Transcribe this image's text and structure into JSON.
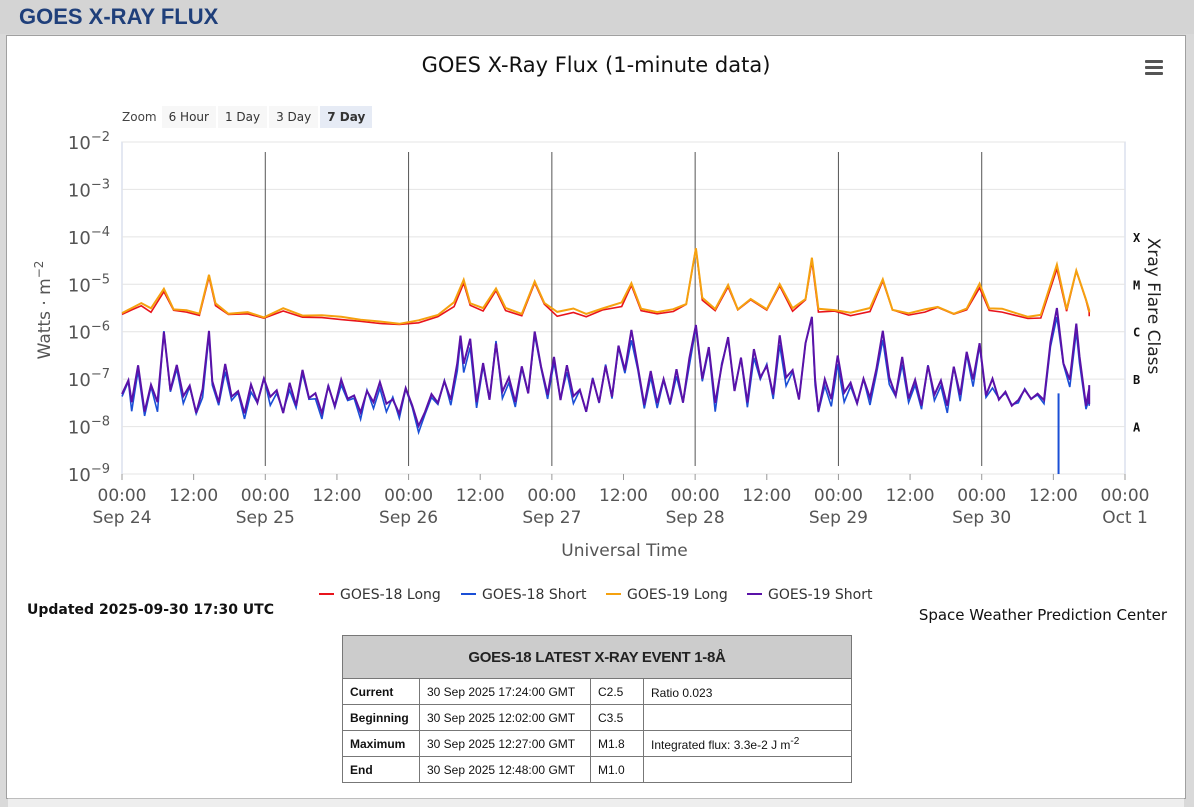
{
  "header": {
    "title": "GOES X-RAY FLUX"
  },
  "chart": {
    "menu_icon": "hamburger-menu-icon",
    "zoom": {
      "label": "Zoom",
      "options": [
        "6 Hour",
        "1 Day",
        "3 Day",
        "7 Day"
      ],
      "active": "7 Day"
    }
  },
  "chart_data": {
    "type": "line",
    "title": "GOES X-Ray Flux (1-minute data)",
    "xlabel": "Universal Time",
    "ylabel": "Watts · m",
    "ylabel_exponent": "−2",
    "right_axis_title": "Xray Flare Class",
    "yscale": "log",
    "ylim": [
      1e-09,
      0.01
    ],
    "xlim": [
      "2025-09-24 00:00",
      "2025-10-01 00:00"
    ],
    "y_ticks": [
      {
        "base": "10",
        "exp": "−2"
      },
      {
        "base": "10",
        "exp": "−3"
      },
      {
        "base": "10",
        "exp": "−4"
      },
      {
        "base": "10",
        "exp": "−5"
      },
      {
        "base": "10",
        "exp": "−6"
      },
      {
        "base": "10",
        "exp": "−7"
      },
      {
        "base": "10",
        "exp": "−8"
      },
      {
        "base": "10",
        "exp": "−9"
      }
    ],
    "x_ticks": [
      {
        "time": "00:00",
        "date": "Sep 24"
      },
      {
        "time": "12:00",
        "date": ""
      },
      {
        "time": "00:00",
        "date": "Sep 25"
      },
      {
        "time": "12:00",
        "date": ""
      },
      {
        "time": "00:00",
        "date": "Sep 26"
      },
      {
        "time": "12:00",
        "date": ""
      },
      {
        "time": "00:00",
        "date": "Sep 27"
      },
      {
        "time": "12:00",
        "date": ""
      },
      {
        "time": "00:00",
        "date": "Sep 28"
      },
      {
        "time": "12:00",
        "date": ""
      },
      {
        "time": "00:00",
        "date": "Sep 29"
      },
      {
        "time": "12:00",
        "date": ""
      },
      {
        "time": "00:00",
        "date": "Sep 30"
      },
      {
        "time": "12:00",
        "date": ""
      },
      {
        "time": "00:00",
        "date": "Oct 1"
      }
    ],
    "flare_classes": [
      {
        "label": "X",
        "value": 0.0001
      },
      {
        "label": "M",
        "value": 1e-05
      },
      {
        "label": "C",
        "value": 1e-06
      },
      {
        "label": "B",
        "value": 1e-07
      },
      {
        "label": "A",
        "value": 1e-08
      }
    ],
    "legend_position": "bottom-center",
    "series": [
      {
        "name": "GOES-18 Long",
        "color": "#e8141c"
      },
      {
        "name": "GOES-18 Short",
        "color": "#1a4fd6"
      },
      {
        "name": "GOES-19 Long",
        "color": "#f5a10f"
      },
      {
        "name": "GOES-19 Short",
        "color": "#5a12a8"
      }
    ],
    "long_points": [
      [
        0,
        2.5e-06
      ],
      [
        3,
        3e-06
      ],
      [
        6,
        4e-06
      ],
      [
        9,
        3e-06
      ],
      [
        13,
        8e-06
      ],
      [
        16,
        3e-06
      ],
      [
        20,
        3e-06
      ],
      [
        24,
        2.5e-06
      ],
      [
        27,
        1.5e-05
      ],
      [
        29,
        4e-06
      ],
      [
        33,
        2.5e-06
      ],
      [
        39,
        2.5e-06
      ],
      [
        44,
        2e-06
      ],
      [
        50,
        3e-06
      ],
      [
        56,
        2.3e-06
      ],
      [
        62,
        2.2e-06
      ],
      [
        68,
        2e-06
      ],
      [
        74,
        1.8e-06
      ],
      [
        80,
        1.7e-06
      ],
      [
        86,
        1.5e-06
      ],
      [
        92,
        1.8e-06
      ],
      [
        98,
        2.2e-06
      ],
      [
        103,
        4e-06
      ],
      [
        106,
        1.2e-05
      ],
      [
        108,
        4e-06
      ],
      [
        112,
        3e-06
      ],
      [
        116,
        8e-06
      ],
      [
        119,
        3e-06
      ],
      [
        124,
        2.3e-06
      ],
      [
        128,
        1.2e-05
      ],
      [
        131,
        4e-06
      ],
      [
        135,
        2.5e-06
      ],
      [
        140,
        3e-06
      ],
      [
        144,
        2.3e-06
      ],
      [
        149,
        3e-06
      ],
      [
        155,
        4e-06
      ],
      [
        158,
        1e-05
      ],
      [
        161,
        3e-06
      ],
      [
        166,
        2.5e-06
      ],
      [
        171,
        3e-06
      ],
      [
        175,
        4e-06
      ],
      [
        178,
        6e-05
      ],
      [
        180,
        5e-06
      ],
      [
        184,
        3e-06
      ],
      [
        188,
        1e-05
      ],
      [
        191,
        3e-06
      ],
      [
        195,
        5e-06
      ],
      [
        200,
        3e-06
      ],
      [
        204,
        1e-05
      ],
      [
        208,
        3e-06
      ],
      [
        212,
        5e-06
      ],
      [
        214,
        3.5e-05
      ],
      [
        216,
        3e-06
      ],
      [
        221,
        3e-06
      ],
      [
        226,
        2.5e-06
      ],
      [
        232,
        3e-06
      ],
      [
        236,
        1.3e-05
      ],
      [
        239,
        3e-06
      ],
      [
        244,
        2.5e-06
      ],
      [
        249,
        3e-06
      ],
      [
        253,
        3.5e-06
      ],
      [
        258,
        2.5e-06
      ],
      [
        262,
        3e-06
      ],
      [
        266,
        1e-05
      ],
      [
        269,
        3e-06
      ],
      [
        273,
        3e-06
      ],
      [
        277,
        2.5e-06
      ],
      [
        281,
        2e-06
      ],
      [
        285,
        2.2e-06
      ],
      [
        290,
        2.5e-05
      ],
      [
        293,
        3e-06
      ],
      [
        296,
        2e-05
      ],
      [
        299,
        5e-06
      ],
      [
        303,
        3e-06
      ],
      [
        306,
        2.5e-06
      ],
      [
        309,
        2.5e-06
      ]
    ],
    "short_points": [
      [
        0,
        5e-08
      ],
      [
        2,
        1e-07
      ],
      [
        3,
        3e-08
      ],
      [
        5,
        2e-07
      ],
      [
        7,
        2e-08
      ],
      [
        9,
        8e-08
      ],
      [
        11,
        3e-08
      ],
      [
        13,
        1e-06
      ],
      [
        15,
        6e-08
      ],
      [
        17,
        2e-07
      ],
      [
        19,
        4e-08
      ],
      [
        21,
        7e-08
      ],
      [
        23,
        2e-08
      ],
      [
        25,
        6e-08
      ],
      [
        27,
        1e-06
      ],
      [
        28,
        1e-07
      ],
      [
        30,
        3e-08
      ],
      [
        32,
        2e-07
      ],
      [
        34,
        4e-08
      ],
      [
        36,
        6e-08
      ],
      [
        38,
        2e-08
      ],
      [
        40,
        8e-08
      ],
      [
        42,
        3e-08
      ],
      [
        44,
        1e-07
      ],
      [
        46,
        4e-08
      ],
      [
        48,
        6e-08
      ],
      [
        50,
        2e-08
      ],
      [
        52,
        8e-08
      ],
      [
        54,
        3e-08
      ],
      [
        56,
        1.5e-07
      ],
      [
        58,
        4e-08
      ],
      [
        60,
        5e-08
      ],
      [
        62,
        2e-08
      ],
      [
        64,
        7e-08
      ],
      [
        66,
        3e-08
      ],
      [
        68,
        1e-07
      ],
      [
        70,
        4e-08
      ],
      [
        72,
        5e-08
      ],
      [
        74,
        2e-08
      ],
      [
        76,
        6e-08
      ],
      [
        78,
        3e-08
      ],
      [
        80,
        8e-08
      ],
      [
        82,
        3e-08
      ],
      [
        84,
        4e-08
      ],
      [
        86,
        2e-08
      ],
      [
        88,
        6e-08
      ],
      [
        90,
        3e-08
      ],
      [
        92,
        1e-08
      ],
      [
        94,
        2e-08
      ],
      [
        96,
        5e-08
      ],
      [
        98,
        3e-08
      ],
      [
        100,
        1e-07
      ],
      [
        102,
        4e-08
      ],
      [
        104,
        2e-07
      ],
      [
        105,
        8e-07
      ],
      [
        106,
        2e-07
      ],
      [
        108,
        7e-07
      ],
      [
        110,
        3e-08
      ],
      [
        112,
        2e-07
      ],
      [
        114,
        4e-08
      ],
      [
        116,
        6e-07
      ],
      [
        118,
        5e-08
      ],
      [
        120,
        1e-07
      ],
      [
        122,
        3e-08
      ],
      [
        124,
        2e-07
      ],
      [
        126,
        5e-08
      ],
      [
        128,
        1e-06
      ],
      [
        130,
        2e-07
      ],
      [
        132,
        5e-08
      ],
      [
        134,
        3e-07
      ],
      [
        136,
        4e-08
      ],
      [
        138,
        2e-07
      ],
      [
        140,
        4e-08
      ],
      [
        142,
        6e-08
      ],
      [
        144,
        2e-08
      ],
      [
        146,
        1e-07
      ],
      [
        148,
        3e-08
      ],
      [
        150,
        2e-07
      ],
      [
        152,
        4e-08
      ],
      [
        154,
        5e-07
      ],
      [
        156,
        1.5e-07
      ],
      [
        158,
        1e-06
      ],
      [
        160,
        2e-07
      ],
      [
        162,
        3e-08
      ],
      [
        164,
        1.5e-07
      ],
      [
        166,
        3e-08
      ],
      [
        168,
        1e-07
      ],
      [
        170,
        3e-08
      ],
      [
        172,
        1.5e-07
      ],
      [
        174,
        3e-08
      ],
      [
        176,
        3e-07
      ],
      [
        178,
        1.5e-06
      ],
      [
        180,
        1e-07
      ],
      [
        182,
        5e-07
      ],
      [
        184,
        3e-08
      ],
      [
        186,
        2e-07
      ],
      [
        188,
        8e-07
      ],
      [
        190,
        6e-08
      ],
      [
        192,
        3e-07
      ],
      [
        194,
        3e-08
      ],
      [
        196,
        4e-07
      ],
      [
        198,
        1e-07
      ],
      [
        200,
        2e-07
      ],
      [
        202,
        5e-08
      ],
      [
        204,
        8e-07
      ],
      [
        206,
        1e-07
      ],
      [
        208,
        1.5e-07
      ],
      [
        210,
        4e-08
      ],
      [
        212,
        6e-07
      ],
      [
        214,
        2e-06
      ],
      [
        215,
        1e-07
      ],
      [
        216,
        2e-08
      ],
      [
        218,
        1e-07
      ],
      [
        220,
        4e-08
      ],
      [
        222,
        3e-07
      ],
      [
        224,
        5e-08
      ],
      [
        226,
        8e-08
      ],
      [
        228,
        3e-08
      ],
      [
        230,
        1e-07
      ],
      [
        232,
        4e-08
      ],
      [
        234,
        1.5e-07
      ],
      [
        236,
        1e-06
      ],
      [
        238,
        1e-07
      ],
      [
        240,
        5e-08
      ],
      [
        242,
        3e-07
      ],
      [
        244,
        4e-08
      ],
      [
        246,
        1e-07
      ],
      [
        248,
        3e-08
      ],
      [
        250,
        2e-07
      ],
      [
        252,
        5e-08
      ],
      [
        254,
        1e-07
      ],
      [
        256,
        3e-08
      ],
      [
        258,
        2e-07
      ],
      [
        260,
        5e-08
      ],
      [
        262,
        4e-07
      ],
      [
        264,
        1e-07
      ],
      [
        266,
        6e-07
      ],
      [
        268,
        5e-08
      ],
      [
        270,
        1e-07
      ],
      [
        272,
        4e-08
      ],
      [
        274,
        6e-08
      ],
      [
        276,
        3e-08
      ],
      [
        278,
        4e-08
      ],
      [
        280,
        6e-08
      ],
      [
        282,
        4e-08
      ],
      [
        284,
        5e-08
      ],
      [
        286,
        4e-08
      ],
      [
        288,
        6e-07
      ],
      [
        290,
        3e-06
      ],
      [
        292,
        2e-07
      ],
      [
        294,
        1e-07
      ],
      [
        296,
        1.5e-06
      ],
      [
        297,
        3e-07
      ],
      [
        299,
        3e-08
      ],
      [
        301,
        6e-08
      ],
      [
        303,
        3e-08
      ],
      [
        305,
        8e-08
      ],
      [
        307,
        6e-08
      ],
      [
        309,
        5e-08
      ]
    ],
    "goes18_short_dropout": [
      290.5,
      1e-09
    ]
  },
  "footer": {
    "updated": "Updated 2025-09-30 17:30 UTC",
    "credit": "Space Weather Prediction Center"
  },
  "event_table": {
    "title": "GOES-18 LATEST X-RAY EVENT 1-8Å",
    "rows": [
      {
        "label": "Current",
        "time": "30 Sep 2025 17:24:00 GMT",
        "class": "C2.5",
        "note": "Ratio 0.023",
        "note_sup": ""
      },
      {
        "label": "Beginning",
        "time": "30 Sep 2025 12:02:00 GMT",
        "class": "C3.5",
        "note": "",
        "note_sup": ""
      },
      {
        "label": "Maximum",
        "time": "30 Sep 2025 12:27:00 GMT",
        "class": "M1.8",
        "note": "Integrated flux: 3.3e-2 J m",
        "note_sup": "-2"
      },
      {
        "label": "End",
        "time": "30 Sep 2025 12:48:00 GMT",
        "class": "M1.0",
        "note": "",
        "note_sup": ""
      }
    ]
  }
}
